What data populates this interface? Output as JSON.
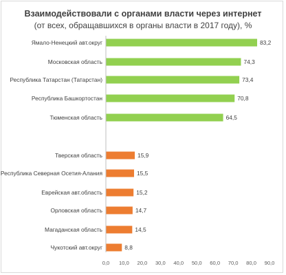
{
  "chart_data": {
    "type": "bar",
    "orientation": "horizontal",
    "title": "Взаимодействовали с органами власти  через интернет",
    "subtitle": "(от всех,  обращавшихся в органы власти в 2017 году), %",
    "xlim": [
      0,
      90
    ],
    "x_ticks": [
      "0,0",
      "10,0",
      "20,0",
      "30,0",
      "40,0",
      "50,0",
      "60,0",
      "70,0",
      "80,0",
      "90,0"
    ],
    "grid": false,
    "legend": "none",
    "colors": {
      "top": "#92d050",
      "bottom": "#ed7d31"
    },
    "groups": [
      {
        "color_key": "top",
        "bars": [
          {
            "category": "Ямало-Ненецкий авт.округ",
            "value": 83.2,
            "label": "83,2"
          },
          {
            "category": "Московская область",
            "value": 74.3,
            "label": "74,3"
          },
          {
            "category": "Республика Татарстан (Татарстан)",
            "value": 73.4,
            "label": "73,4"
          },
          {
            "category": "Республика Башкортостан",
            "value": 70.8,
            "label": "70,8"
          },
          {
            "category": "Тюменская область",
            "value": 64.5,
            "label": "64,5"
          }
        ]
      },
      {
        "color_key": "bottom",
        "bars": [
          {
            "category": "Тверская область",
            "value": 15.9,
            "label": "15,9"
          },
          {
            "category": "Республика Северная Осетия-Алания",
            "value": 15.5,
            "label": "15,5"
          },
          {
            "category": "Еврейская авт.область",
            "value": 15.2,
            "label": "15,2"
          },
          {
            "category": "Орловская область",
            "value": 14.7,
            "label": "14,7"
          },
          {
            "category": "Магаданская область",
            "value": 14.5,
            "label": "14,5"
          },
          {
            "category": "Чукотский авт.округ",
            "value": 8.8,
            "label": "8,8"
          }
        ]
      }
    ]
  }
}
